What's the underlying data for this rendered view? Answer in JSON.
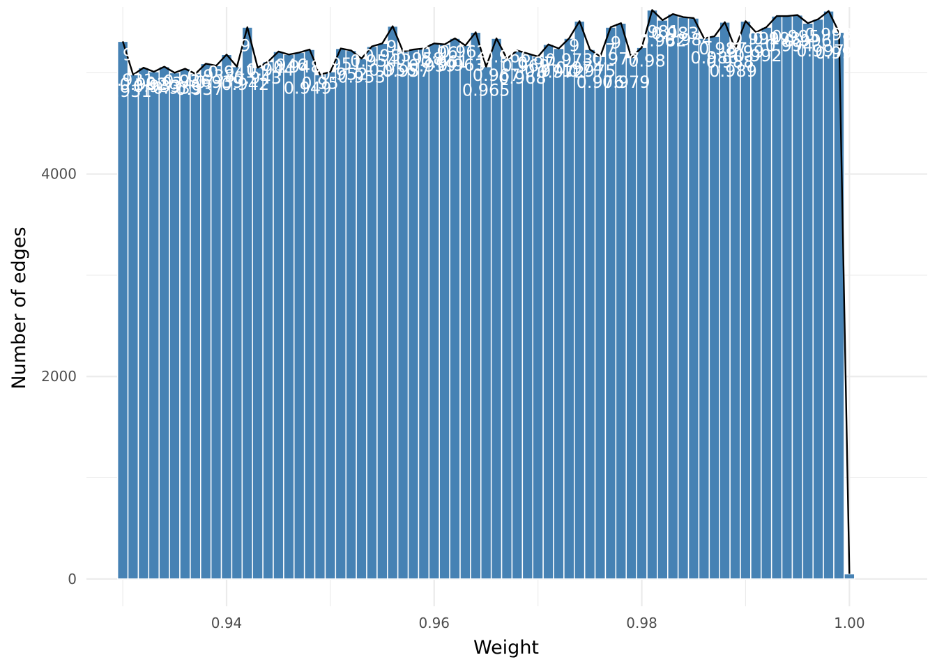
{
  "chart_data": {
    "type": "bar",
    "title": "",
    "xlabel": "Weight",
    "ylabel": "Number of edges",
    "xlim": [
      0.9265,
      1.0075
    ],
    "ylim": [
      -270,
      5650
    ],
    "x_ticks": [
      0.94,
      0.96,
      0.98,
      1.0
    ],
    "x_tick_labels": [
      "0.94",
      "0.96",
      "0.98",
      "1.00"
    ],
    "y_ticks": [
      0,
      2000,
      4000
    ],
    "y_tick_labels": [
      "0",
      "2000",
      "4000"
    ],
    "grid": true,
    "bar_color": "#4682B4",
    "line_color": "#000000",
    "label_color": "#FFFFFF",
    "bin_width": 0.001,
    "x": [
      0.93,
      0.931,
      0.932,
      0.933,
      0.934,
      0.935,
      0.936,
      0.937,
      0.938,
      0.939,
      0.94,
      0.941,
      0.942,
      0.943,
      0.944,
      0.945,
      0.946,
      0.947,
      0.948,
      0.949,
      0.95,
      0.951,
      0.952,
      0.953,
      0.954,
      0.955,
      0.956,
      0.957,
      0.958,
      0.959,
      0.96,
      0.961,
      0.962,
      0.963,
      0.964,
      0.965,
      0.966,
      0.967,
      0.968,
      0.969,
      0.97,
      0.971,
      0.972,
      0.973,
      0.974,
      0.975,
      0.976,
      0.977,
      0.978,
      0.979,
      0.98,
      0.981,
      0.982,
      0.983,
      0.984,
      0.985,
      0.986,
      0.987,
      0.988,
      0.989,
      0.99,
      0.991,
      0.992,
      0.993,
      0.994,
      0.995,
      0.996,
      0.997,
      0.998,
      0.999,
      1.0
    ],
    "values": [
      5310,
      4980,
      5050,
      5010,
      5060,
      5000,
      5040,
      4990,
      5090,
      5070,
      5180,
      5060,
      5450,
      5050,
      5110,
      5210,
      5180,
      5200,
      5230,
      4980,
      5010,
      5240,
      5220,
      5140,
      5260,
      5290,
      5460,
      5210,
      5230,
      5240,
      5290,
      5280,
      5340,
      5270,
      5400,
      5060,
      5340,
      5140,
      5220,
      5190,
      5160,
      5280,
      5240,
      5340,
      5510,
      5230,
      5160,
      5450,
      5490,
      5150,
      5250,
      5620,
      5520,
      5580,
      5550,
      5540,
      5340,
      5360,
      5500,
      5240,
      5510,
      5400,
      5450,
      5560,
      5560,
      5570,
      5490,
      5530,
      5610,
      5400,
      50
    ],
    "bar_labels": [
      {
        "text": "9",
        "x": 0.9305,
        "y": 5170
      },
      {
        "text": "0.931",
        "x": 0.9307,
        "y": 4920
      },
      {
        "text": ".931",
        "x": 0.931,
        "y": 4810
      },
      {
        "text": "0.932",
        "x": 0.932,
        "y": 4880
      },
      {
        "text": "0.933",
        "x": 0.9333,
        "y": 4860
      },
      {
        "text": "0.934",
        "x": 0.9345,
        "y": 4890
      },
      {
        "text": "0.935",
        "x": 0.9352,
        "y": 4840
      },
      {
        "text": "0.936",
        "x": 0.9362,
        "y": 4910
      },
      {
        "text": "0.937",
        "x": 0.9374,
        "y": 4830
      },
      {
        "text": "0.938",
        "x": 0.9385,
        "y": 4960
      },
      {
        "text": "0.939",
        "x": 0.9393,
        "y": 4900
      },
      {
        "text": "9",
        "x": 0.9418,
        "y": 5260
      },
      {
        "text": "0.941",
        "x": 0.9405,
        "y": 5000
      },
      {
        "text": "0.942",
        "x": 0.9418,
        "y": 4880
      },
      {
        "text": "0.943",
        "x": 0.943,
        "y": 4940
      },
      {
        "text": "0.944",
        "x": 0.9442,
        "y": 5020
      },
      {
        "text": "0.946",
        "x": 0.9455,
        "y": 5070
      },
      {
        "text": "0.948",
        "x": 0.9468,
        "y": 5050
      },
      {
        "text": "0.949",
        "x": 0.9478,
        "y": 4840
      },
      {
        "text": "0.95",
        "x": 0.949,
        "y": 4890
      },
      {
        "text": "0.951",
        "x": 0.9508,
        "y": 5080
      },
      {
        "text": "0.952",
        "x": 0.9513,
        "y": 4980
      },
      {
        "text": "0.953",
        "x": 0.953,
        "y": 4950
      },
      {
        "text": "0.954",
        "x": 0.9542,
        "y": 5110
      },
      {
        "text": "9",
        "x": 0.9559,
        "y": 5250
      },
      {
        "text": "0.955",
        "x": 0.9555,
        "y": 5160
      },
      {
        "text": "0.956",
        "x": 0.956,
        "y": 5020
      },
      {
        "text": "0.957",
        "x": 0.9573,
        "y": 5010
      },
      {
        "text": "0.958",
        "x": 0.9586,
        "y": 5130
      },
      {
        "text": "0.959",
        "x": 0.9598,
        "y": 5060
      },
      {
        "text": "0.96",
        "x": 0.9605,
        "y": 5190
      },
      {
        "text": "0.961",
        "x": 0.961,
        "y": 5100
      },
      {
        "text": "0.962",
        "x": 0.9628,
        "y": 5200
      },
      {
        "text": "0.963",
        "x": 0.9626,
        "y": 5070
      },
      {
        "text": "0.965",
        "x": 0.965,
        "y": 4820
      },
      {
        "text": "0.966",
        "x": 0.967,
        "y": 5150
      },
      {
        "text": "0.967",
        "x": 0.966,
        "y": 4970
      },
      {
        "text": "0.968",
        "x": 0.9685,
        "y": 4940
      },
      {
        "text": "0.969",
        "x": 0.9688,
        "y": 5060
      },
      {
        "text": "0.97",
        "x": 0.9698,
        "y": 5090
      },
      {
        "text": "0.971",
        "x": 0.971,
        "y": 5010
      },
      {
        "text": "0.972",
        "x": 0.9722,
        "y": 5000
      },
      {
        "text": "0.973",
        "x": 0.973,
        "y": 5120
      },
      {
        "text": "9",
        "x": 0.9735,
        "y": 5260
      },
      {
        "text": "0.974",
        "x": 0.974,
        "y": 5040
      },
      {
        "text": "0.975",
        "x": 0.9752,
        "y": 5010
      },
      {
        "text": "0.976",
        "x": 0.976,
        "y": 4900
      },
      {
        "text": "7",
        "x": 0.977,
        "y": 5220
      },
      {
        "text": "9",
        "x": 0.9775,
        "y": 5290
      },
      {
        "text": "0.977",
        "x": 0.9775,
        "y": 5130
      },
      {
        "text": "0.979",
        "x": 0.9785,
        "y": 4900
      },
      {
        "text": "0.98",
        "x": 0.9805,
        "y": 5110
      },
      {
        "text": "0.981",
        "x": 0.9813,
        "y": 5400
      },
      {
        "text": "0.982",
        "x": 0.982,
        "y": 5310
      },
      {
        "text": "0.983",
        "x": 0.9832,
        "y": 5380
      },
      {
        "text": "0.984",
        "x": 0.9845,
        "y": 5320
      },
      {
        "text": "0.986",
        "x": 0.987,
        "y": 5140
      },
      {
        "text": "0.987",
        "x": 0.9878,
        "y": 5230
      },
      {
        "text": "0.988",
        "x": 0.9885,
        "y": 5100
      },
      {
        "text": "0.989",
        "x": 0.9888,
        "y": 5010
      },
      {
        "text": "0.99",
        "x": 0.99,
        "y": 5200
      },
      {
        "text": "0.991",
        "x": 0.991,
        "y": 5330
      },
      {
        "text": "0.992",
        "x": 0.9912,
        "y": 5160
      },
      {
        "text": "0.993",
        "x": 0.993,
        "y": 5330
      },
      {
        "text": "0.994",
        "x": 0.9942,
        "y": 5260
      },
      {
        "text": "0.995",
        "x": 0.9948,
        "y": 5350
      },
      {
        "text": "0.996",
        "x": 0.996,
        "y": 5310
      },
      {
        "text": "0.997",
        "x": 0.9972,
        "y": 5210
      },
      {
        "text": "0.998",
        "x": 0.998,
        "y": 5370
      },
      {
        "text": "0.999",
        "x": 0.999,
        "y": 5190
      }
    ]
  }
}
